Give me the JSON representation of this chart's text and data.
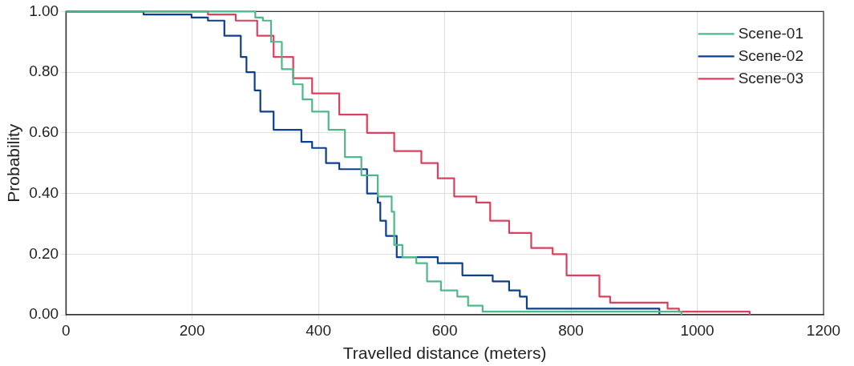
{
  "chart_data": {
    "type": "step",
    "xlabel": "Travelled distance (meters)",
    "ylabel": "Probability",
    "xlim": [
      0,
      1200
    ],
    "xticks": [
      0,
      200,
      400,
      600,
      800,
      1000,
      1200
    ],
    "ylim": [
      0,
      1
    ],
    "yticks": [
      {
        "value": 0,
        "label": "0.00"
      },
      {
        "value": 0.2,
        "label": "0.20"
      },
      {
        "value": 0.4,
        "label": "0.40"
      },
      {
        "value": 0.6,
        "label": "0.60"
      },
      {
        "value": 0.8,
        "label": "0.80"
      },
      {
        "value": 1,
        "label": "1.00"
      }
    ],
    "grid": true,
    "legend": "top right",
    "marker": "none",
    "line_style": "solid",
    "series": [
      {
        "name": "Scene-01",
        "color": "#4fb88a",
        "x": [
          0,
          270,
          300,
          312,
          325,
          342,
          360,
          375,
          390,
          416,
          442,
          468,
          494,
          516,
          520,
          533,
          555,
          572,
          594,
          620,
          637,
          660,
          975
        ],
        "values": [
          1,
          1,
          0.98,
          0.97,
          0.9,
          0.81,
          0.76,
          0.71,
          0.67,
          0.61,
          0.52,
          0.46,
          0.39,
          0.34,
          0.23,
          0.19,
          0.17,
          0.11,
          0.08,
          0.06,
          0.03,
          0.01,
          0
        ]
      },
      {
        "name": "Scene-02",
        "color": "#0d3f8c",
        "x": [
          0,
          123,
          199,
          225,
          251,
          277,
          286,
          299,
          308,
          329,
          373,
          390,
          412,
          433,
          477,
          494,
          498,
          507,
          524,
          555,
          589,
          628,
          676,
          702,
          719,
          730,
          940
        ],
        "values": [
          1,
          0.99,
          0.98,
          0.97,
          0.92,
          0.85,
          0.8,
          0.74,
          0.67,
          0.61,
          0.57,
          0.55,
          0.5,
          0.48,
          0.4,
          0.37,
          0.31,
          0.26,
          0.19,
          0.19,
          0.17,
          0.13,
          0.11,
          0.08,
          0.06,
          0.02,
          0
        ]
      },
      {
        "name": "Scene-03",
        "color": "#d9415f",
        "x": [
          0,
          225,
          269,
          303,
          329,
          360,
          390,
          433,
          477,
          520,
          563,
          589,
          615,
          650,
          672,
          702,
          737,
          771,
          793,
          823,
          845,
          862,
          945,
          953,
          971,
          1083
        ],
        "values": [
          1,
          0.99,
          0.97,
          0.92,
          0.85,
          0.78,
          0.73,
          0.66,
          0.6,
          0.54,
          0.5,
          0.45,
          0.39,
          0.37,
          0.31,
          0.27,
          0.22,
          0.2,
          0.13,
          0.13,
          0.06,
          0.04,
          0.04,
          0.02,
          0.01,
          0
        ]
      }
    ]
  }
}
